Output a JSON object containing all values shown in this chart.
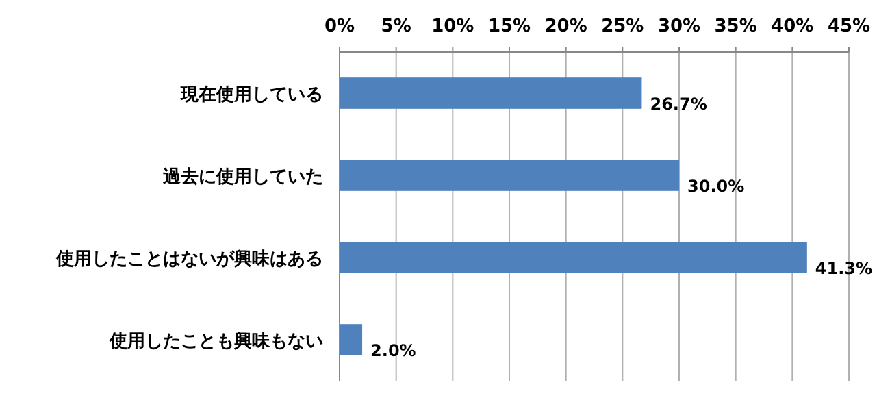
{
  "chart_data": {
    "type": "bar",
    "orientation": "horizontal",
    "categories": [
      "現在使用している",
      "過去に使用していた",
      "使用したことはないが興味はある",
      "使用したことも興味もない"
    ],
    "values": [
      26.7,
      30.0,
      41.3,
      2.0
    ],
    "value_labels": [
      "26.7%",
      "30.0%",
      "41.3%",
      "2.0%"
    ],
    "color": "#4f81bd",
    "xlim": [
      0,
      45
    ],
    "xticks": [
      {
        "value": 0,
        "label": "0%"
      },
      {
        "value": 5,
        "label": "5%"
      },
      {
        "value": 10,
        "label": "10%"
      },
      {
        "value": 15,
        "label": "15%"
      },
      {
        "value": 20,
        "label": "20%"
      },
      {
        "value": 25,
        "label": "25%"
      },
      {
        "value": 30,
        "label": "30%"
      },
      {
        "value": 35,
        "label": "35%"
      },
      {
        "value": 40,
        "label": "40%"
      },
      {
        "value": 45,
        "label": "45%"
      }
    ],
    "grid": "x"
  }
}
